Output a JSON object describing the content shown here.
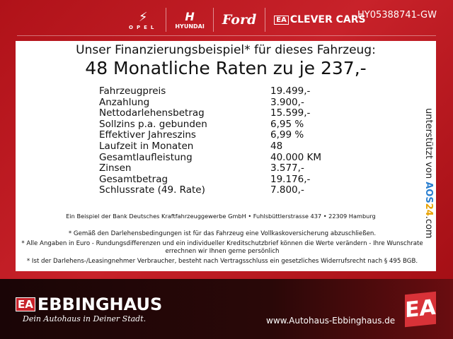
{
  "header": {
    "brands": [
      "OPEL",
      "HYUNDAI",
      "Ford",
      "CLEVER CARS"
    ],
    "ea_mark": "EA",
    "reference": "HY05388741-GW"
  },
  "panel": {
    "title_line1": "Unser Finanzierungsbeispiel* für dieses Fahrzeug:",
    "title_line2": "48 Monatliche Raten zu je 237,-",
    "rows": [
      {
        "label": "Fahrzeugpreis",
        "value": "19.499,-"
      },
      {
        "label": "Anzahlung",
        "value": "3.900,-"
      },
      {
        "label": "Nettodarlehensbetrag",
        "value": "15.599,-"
      },
      {
        "label": "Sollzins p.a. gebunden",
        "value": "6,95 %"
      },
      {
        "label": "Effektiver Jahreszins",
        "value": "6,99 %"
      },
      {
        "label": "Laufzeit in Monaten",
        "value": "48"
      },
      {
        "label": "Gesamtlaufleistung",
        "value": "40.000 KM"
      },
      {
        "label": "Zinsen",
        "value": "3.577,-"
      },
      {
        "label": "Gesamtbetrag",
        "value": "19.176,-"
      },
      {
        "label": "Schlussrate (49. Rate)",
        "value": "7.800,-"
      }
    ],
    "bank": "Ein Beispiel der Bank Deutsches Kraftfahrzeuggewerbe GmbH • Fuhlsbüttlerstrasse 437 • 22309 Hamburg",
    "notes": [
      "* Gemäß den Darlehensbedingungen ist für das Fahrzeug eine Vollkaskoversicherung abzuschließen.",
      "* Alle Angaben in Euro - Rundungsdifferenzen und ein individueller Kreditschutzbrief können die Werte verändern - Ihre Wunschrate errechnen wir Ihnen gerne persönlich",
      "* Ist der Darlehens-/Leasingnehmer Verbraucher, besteht nach Vertragsschluss ein gesetzliches Widerrufsrecht nach § 495 BGB."
    ],
    "supported_by": "unterstützt von",
    "aos_a": "AOS",
    "aos_b": "24",
    ".com": "",
    "aos_c": ".com"
  },
  "footer": {
    "logo_mark": "EA",
    "name": "EBBINGHAUS",
    "slogan": "Dein Autohaus in Deiner Stadt.",
    "url": "www.Autohaus-Ebbinghaus.de",
    "big_mark": "EA"
  }
}
